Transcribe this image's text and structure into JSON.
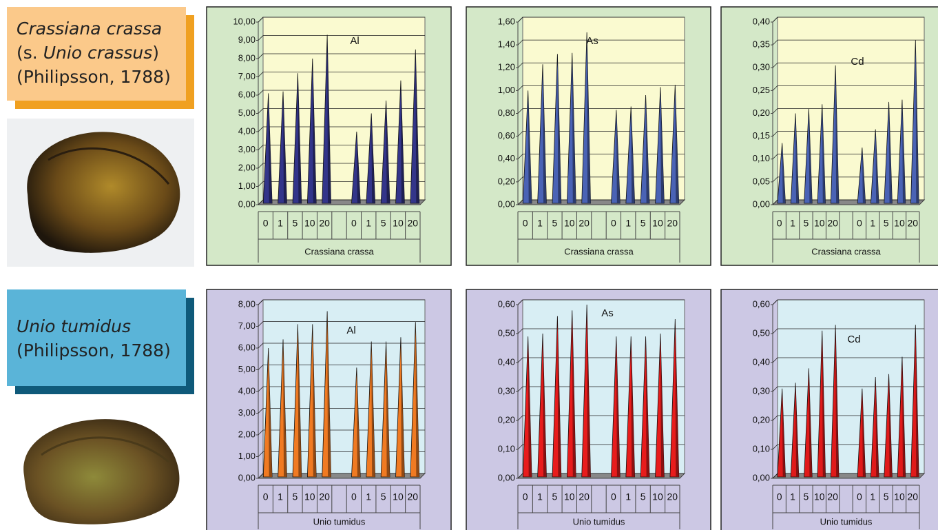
{
  "species": [
    {
      "name": "Crassiana crassa",
      "synonym_prefix": "(s.",
      "synonym": "Unio crassus",
      "synonym_suffix": ")",
      "author": "(Philipsson, 1788)"
    },
    {
      "name": "Unio tumidus",
      "author": "(Philipsson, 1788)"
    }
  ],
  "chart_data": [
    {
      "type": "bar",
      "title": "Al",
      "group_label": "Crassiana crassa",
      "color": "#33358a",
      "categories": [
        "0",
        "1",
        "5",
        "10",
        "20",
        null,
        "0",
        "1",
        "5",
        "10",
        "20"
      ],
      "values": [
        6.1,
        6.2,
        7.2,
        8.0,
        9.3,
        null,
        4.0,
        5.0,
        5.7,
        6.8,
        8.5
      ],
      "ylim": [
        0,
        10
      ],
      "grid": true,
      "yticks": [
        {
          "value": 0,
          "label": "0,00"
        },
        {
          "value": 1,
          "label": "1,00"
        },
        {
          "value": 2,
          "label": "2,00"
        },
        {
          "value": 3,
          "label": "3,00"
        },
        {
          "value": 4,
          "label": "4,00"
        },
        {
          "value": 5,
          "label": "5,00"
        },
        {
          "value": 6,
          "label": "6,00"
        },
        {
          "value": 7,
          "label": "7,00"
        },
        {
          "value": 8,
          "label": "8,00"
        },
        {
          "value": 9,
          "label": "9,00"
        },
        {
          "value": 10,
          "label": "10,00"
        }
      ]
    },
    {
      "type": "bar",
      "title": "As",
      "group_label": "Crassiana crassa",
      "color": "#4a63b5",
      "categories": [
        "0",
        "1",
        "5",
        "10",
        "20",
        null,
        "0",
        "1",
        "5",
        "10",
        "20"
      ],
      "values": [
        1.0,
        1.23,
        1.32,
        1.33,
        1.51,
        null,
        0.83,
        0.86,
        0.96,
        1.03,
        1.05
      ],
      "ylim": [
        0,
        1.6
      ],
      "grid": true,
      "yticks": [
        {
          "value": 0,
          "label": "0,00"
        },
        {
          "value": 0.2,
          "label": "0,20"
        },
        {
          "value": 0.4,
          "label": "0,40"
        },
        {
          "value": 0.6,
          "label": "0,60"
        },
        {
          "value": 0.8,
          "label": "0,80"
        },
        {
          "value": 1,
          "label": "1,00"
        },
        {
          "value": 1.2,
          "label": "1,20"
        },
        {
          "value": 1.4,
          "label": "1,40"
        },
        {
          "value": 1.6,
          "label": "1,60"
        }
      ]
    },
    {
      "type": "bar",
      "title": "Cd",
      "group_label": "Crassiana crassa",
      "color": "#4a63b5",
      "categories": [
        "0",
        "1",
        "5",
        "10",
        "20",
        null,
        "0",
        "1",
        "5",
        "10",
        "20"
      ],
      "values": [
        0.135,
        0.2,
        0.21,
        0.22,
        0.305,
        null,
        0.125,
        0.165,
        0.225,
        0.23,
        0.36
      ],
      "ylim": [
        0,
        0.4
      ],
      "grid": true,
      "yticks": [
        {
          "value": 0,
          "label": "0,00"
        },
        {
          "value": 0.05,
          "label": "0,05"
        },
        {
          "value": 0.1,
          "label": "0,10"
        },
        {
          "value": 0.15,
          "label": "0,15"
        },
        {
          "value": 0.2,
          "label": "0,20"
        },
        {
          "value": 0.25,
          "label": "0,25"
        },
        {
          "value": 0.3,
          "label": "0,30"
        },
        {
          "value": 0.35,
          "label": "0,35"
        },
        {
          "value": 0.4,
          "label": "0,40"
        }
      ]
    },
    {
      "type": "bar",
      "title": "Al",
      "group_label": "Unio tumidus",
      "color": "#f07a22",
      "categories": [
        "0",
        "1",
        "5",
        "10",
        "20",
        null,
        "0",
        "1",
        "5",
        "10",
        "20"
      ],
      "values": [
        6.0,
        6.4,
        7.1,
        7.1,
        7.7,
        null,
        5.1,
        6.3,
        6.3,
        6.5,
        7.2
      ],
      "ylim": [
        0,
        8
      ],
      "grid": true,
      "yticks": [
        {
          "value": 0,
          "label": "0,00"
        },
        {
          "value": 1,
          "label": "1,00"
        },
        {
          "value": 2,
          "label": "2,00"
        },
        {
          "value": 3,
          "label": "3,00"
        },
        {
          "value": 4,
          "label": "4,00"
        },
        {
          "value": 5,
          "label": "5,00"
        },
        {
          "value": 6,
          "label": "6,00"
        },
        {
          "value": 7,
          "label": "7,00"
        },
        {
          "value": 8,
          "label": "8,00"
        }
      ]
    },
    {
      "type": "bar",
      "title": "As",
      "group_label": "Unio tumidus",
      "color": "#e81c1c",
      "categories": [
        "0",
        "1",
        "5",
        "10",
        "20",
        null,
        "0",
        "1",
        "5",
        "10",
        "20"
      ],
      "values": [
        0.49,
        0.5,
        0.56,
        0.58,
        0.6,
        null,
        0.49,
        0.49,
        0.49,
        0.5,
        0.55
      ],
      "ylim": [
        0,
        0.6
      ],
      "grid": true,
      "yticks": [
        {
          "value": 0,
          "label": "0,00"
        },
        {
          "value": 0.1,
          "label": "0,10"
        },
        {
          "value": 0.2,
          "label": "0,20"
        },
        {
          "value": 0.3,
          "label": "0,30"
        },
        {
          "value": 0.4,
          "label": "0,40"
        },
        {
          "value": 0.5,
          "label": "0,50"
        },
        {
          "value": 0.6,
          "label": "0,60"
        }
      ]
    },
    {
      "type": "bar",
      "title": "Cd",
      "group_label": "Unio tumidus",
      "color": "#e01a1a",
      "categories": [
        "0",
        "1",
        "5",
        "10",
        "20",
        null,
        "0",
        "1",
        "5",
        "10",
        "20"
      ],
      "values": [
        0.31,
        0.33,
        0.38,
        0.51,
        0.53,
        null,
        0.31,
        0.35,
        0.36,
        0.42,
        0.53
      ],
      "ylim": [
        0,
        0.6
      ],
      "grid": true,
      "yticks": [
        {
          "value": 0,
          "label": "0,00"
        },
        {
          "value": 0.1,
          "label": "0,10"
        },
        {
          "value": 0.2,
          "label": "0,20"
        },
        {
          "value": 0.3,
          "label": "0,30"
        },
        {
          "value": 0.4,
          "label": "0,40"
        },
        {
          "value": 0.5,
          "label": "0,50"
        },
        {
          "value": 0.6,
          "label": "0,60"
        }
      ]
    }
  ]
}
